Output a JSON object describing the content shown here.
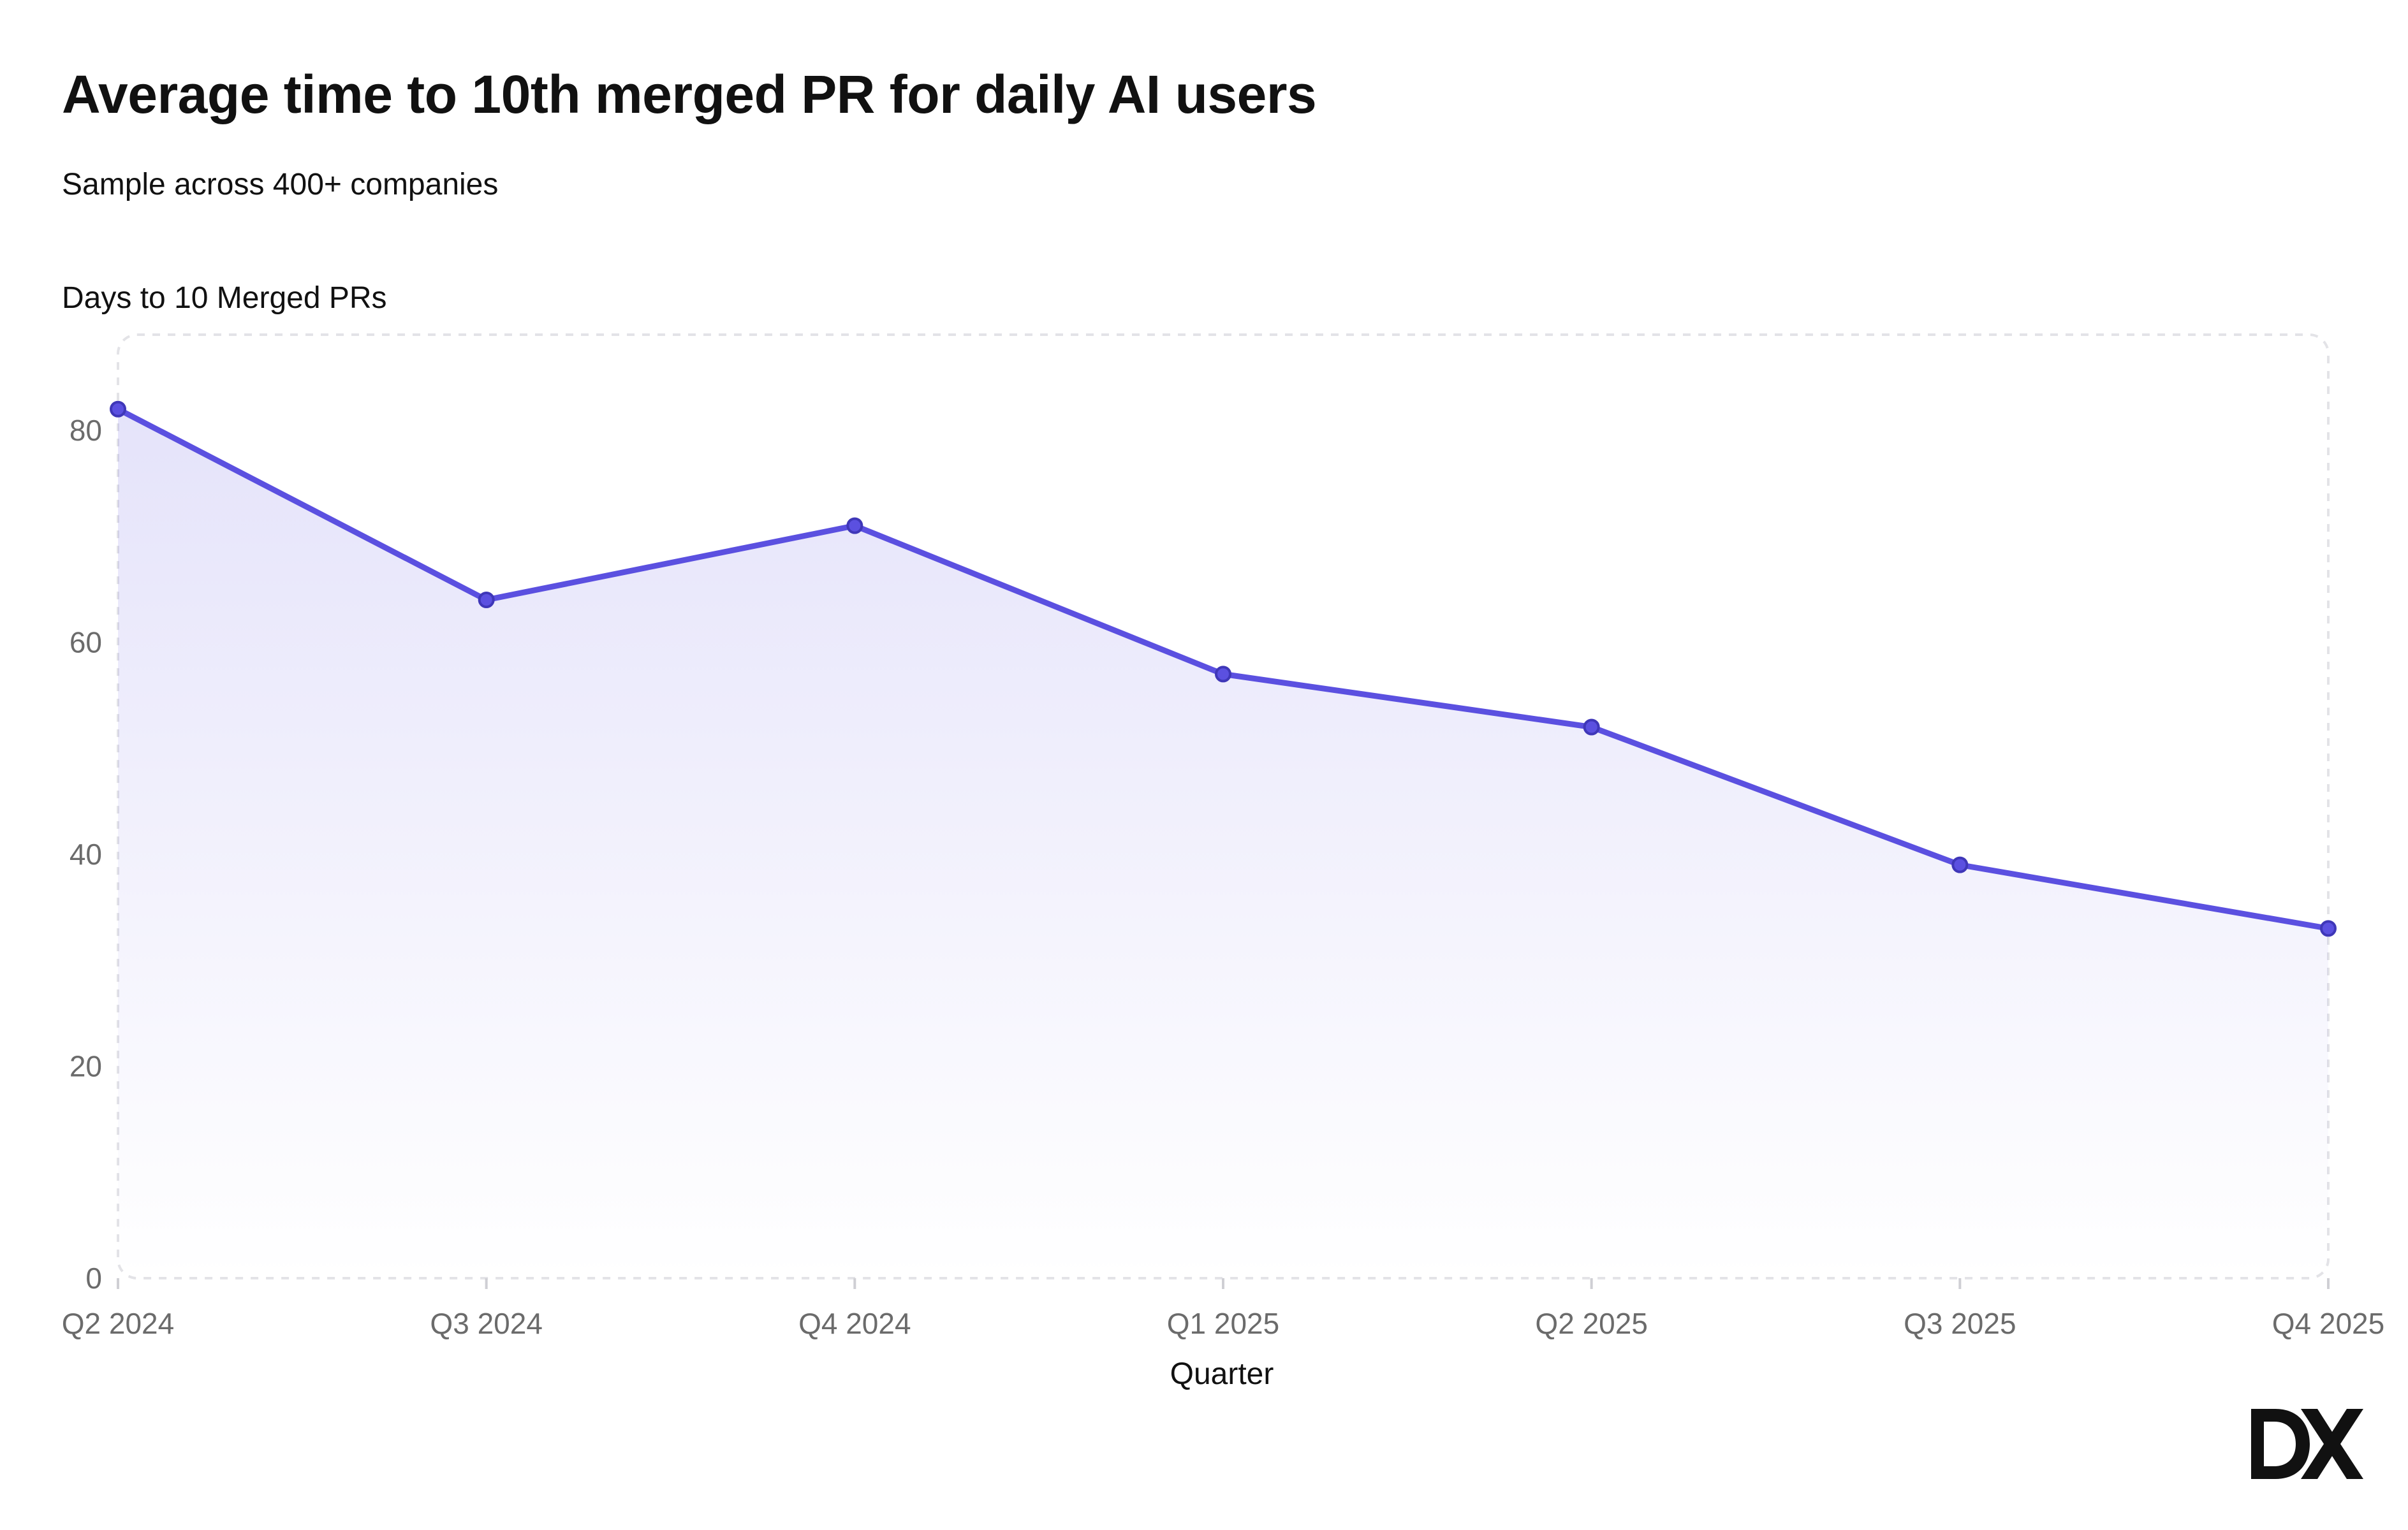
{
  "chart_data": {
    "type": "area",
    "title": "Average time to 10th merged PR for daily AI users",
    "subtitle": "Sample across 400+ companies",
    "ylabel": "Days to 10 Merged PRs",
    "xlabel": "Quarter",
    "categories": [
      "Q2 2024",
      "Q3 2024",
      "Q4 2024",
      "Q1 2025",
      "Q2 2025",
      "Q3 2025",
      "Q4 2025"
    ],
    "series": [
      {
        "values": [
          82,
          64,
          71,
          57,
          52,
          39,
          33
        ]
      }
    ],
    "yticks": [
      0,
      20,
      40,
      60,
      80
    ],
    "ylim": [
      0,
      90
    ],
    "grid": false,
    "line_color": "#5b50e0",
    "fill_color": "#e7e4fb"
  },
  "brand": {
    "logo_text": "DX",
    "logo_icon": "dx-logo-icon"
  }
}
